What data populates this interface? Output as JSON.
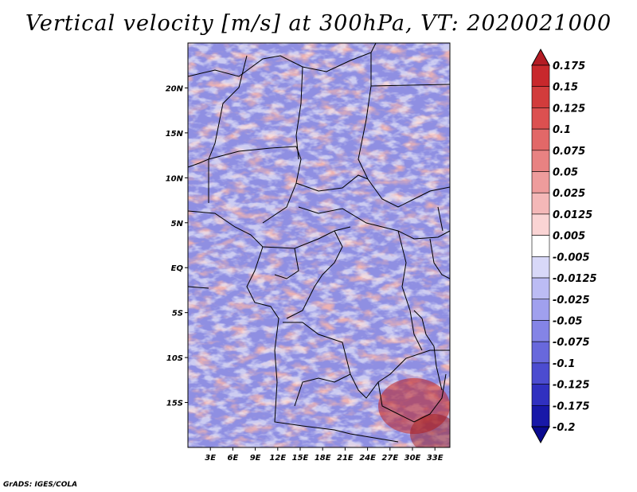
{
  "title": "Vertical velocity [m/s] at 300hPa, VT: 2020021000",
  "credit": "GrADS: IGES/COLA",
  "map": {
    "lat_labels": [
      "20N",
      "15N",
      "10N",
      "5N",
      "EQ",
      "5S",
      "10S",
      "15S"
    ],
    "lat_values": [
      20,
      15,
      10,
      5,
      0,
      -5,
      -10,
      -15
    ],
    "lon_labels": [
      "3E",
      "6E",
      "9E",
      "12E",
      "15E",
      "18E",
      "21E",
      "24E",
      "27E",
      "30E",
      "33E"
    ],
    "lon_values": [
      3,
      6,
      9,
      12,
      15,
      18,
      21,
      24,
      27,
      30,
      33
    ],
    "lon_range": [
      0,
      35
    ],
    "lat_range": [
      -20,
      25
    ]
  },
  "colorbar": {
    "labels": [
      "0.175",
      "0.15",
      "0.125",
      "0.1",
      "0.075",
      "0.05",
      "0.025",
      "0.0125",
      "0.005",
      "-0.005",
      "-0.0125",
      "-0.025",
      "-0.05",
      "-0.075",
      "-0.1",
      "-0.125",
      "-0.175",
      "-0.2"
    ],
    "colors": [
      "#b41c24",
      "#c8282c",
      "#d23c3c",
      "#dc5050",
      "#e26868",
      "#e88282",
      "#ee9c9c",
      "#f4b8b8",
      "#fad4d4",
      "#ffffff",
      "#d8d8f8",
      "#bcbcf4",
      "#a0a0ee",
      "#8484e6",
      "#6868dc",
      "#4c4cd0",
      "#3030c0",
      "#1818a8",
      "#0a0a90"
    ]
  }
}
